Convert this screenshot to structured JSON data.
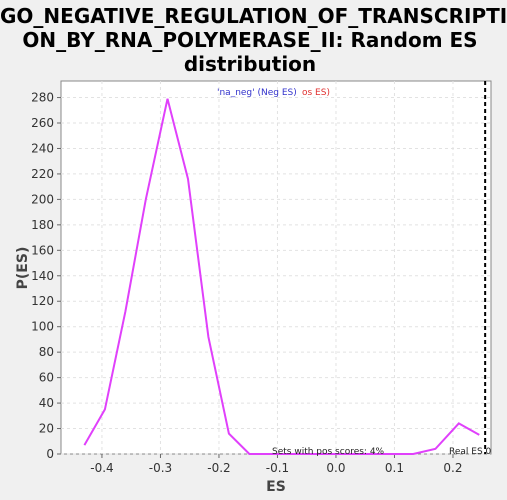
{
  "chart_data": {
    "type": "line",
    "title": "GO_NEGATIVE_REGULATION_OF_TRANSCRIPTI\nON_BY_RNA_POLYMERASE_II: Random ES\ndistribution",
    "xlabel": "ES",
    "ylabel": "P(ES)",
    "xlim": [
      -0.47,
      0.265
    ],
    "ylim": [
      0,
      293
    ],
    "x_ticks": [
      -0.4,
      -0.3,
      -0.2,
      -0.1,
      0.0,
      0.1,
      0.2
    ],
    "x_tick_labels": [
      "-0.4",
      "-0.3",
      "-0.2",
      "-0.1",
      "0.0",
      "0.1",
      "0.2"
    ],
    "y_ticks": [
      0,
      20,
      40,
      60,
      80,
      100,
      120,
      140,
      160,
      180,
      200,
      220,
      240,
      260,
      280
    ],
    "y_tick_labels": [
      "0",
      "20",
      "40",
      "60",
      "80",
      "100",
      "120",
      "140",
      "160",
      "180",
      "200",
      "220",
      "240",
      "260",
      "280"
    ],
    "grid": true,
    "series": [
      {
        "color": "#e040fb",
        "x": [
          -0.43,
          -0.395,
          -0.36,
          -0.325,
          -0.288,
          -0.253,
          -0.218,
          -0.183,
          -0.148,
          -0.113,
          -0.078,
          -0.043,
          -0.008,
          0.027,
          0.062,
          0.097,
          0.132,
          0.17,
          0.21,
          0.245
        ],
        "y": [
          7,
          35,
          112,
          200,
          279,
          216,
          92,
          16,
          0,
          0,
          0,
          0,
          0,
          0,
          0,
          0,
          0,
          4,
          24,
          15
        ]
      }
    ],
    "real_es": 0.255,
    "legend": {
      "placement": "top-center",
      "neg_text": "'na_neg' (Neg ES)",
      "pos_text": "os ES)",
      "neg_color": "#3333cc",
      "pos_color": "#e0302f"
    },
    "annotations": {
      "pos_scores": "Sets with pos scores: 4%",
      "real_es_label": "Real ES 0"
    }
  }
}
